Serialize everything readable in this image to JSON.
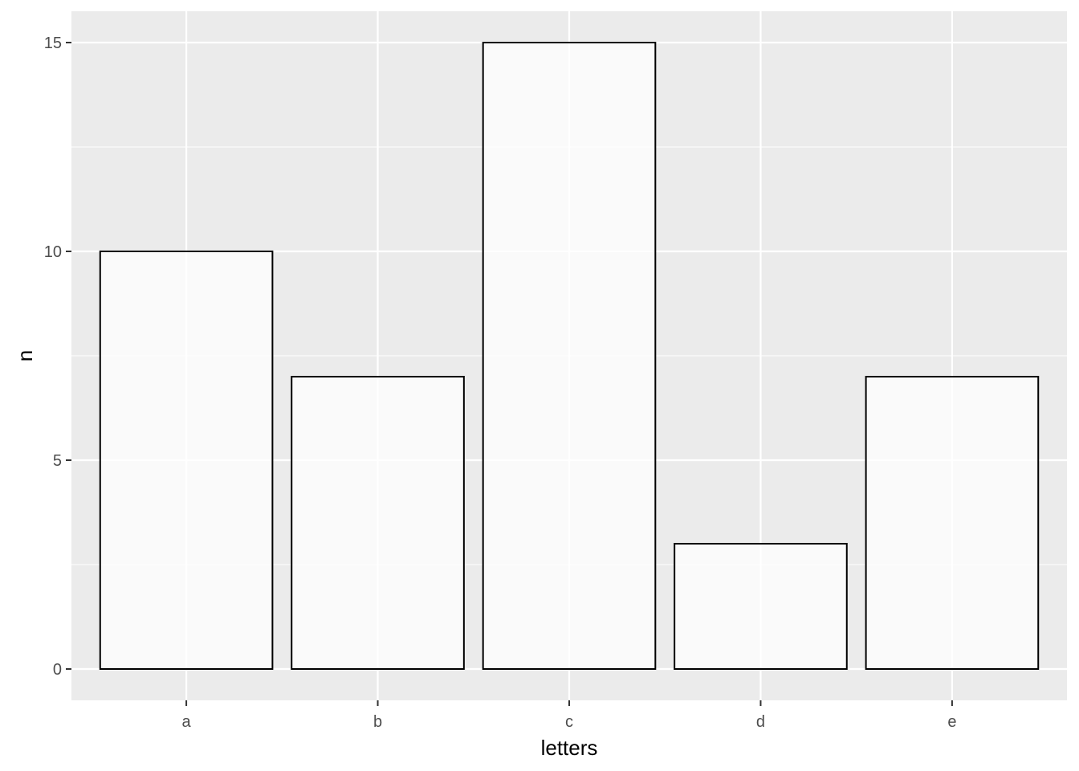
{
  "chart_data": {
    "type": "bar",
    "categories": [
      "a",
      "b",
      "c",
      "d",
      "e"
    ],
    "values": [
      10,
      7,
      15,
      3,
      7
    ],
    "xlabel": "letters",
    "ylabel": "n",
    "ylim": [
      -0.75,
      15.75
    ],
    "yticks": [
      0,
      5,
      10,
      15
    ],
    "grid": true,
    "colors": {
      "panel": "#ebebeb",
      "bar_fill": "#ffffff",
      "bar_outline": "#000000",
      "grid": "#ffffff"
    }
  }
}
